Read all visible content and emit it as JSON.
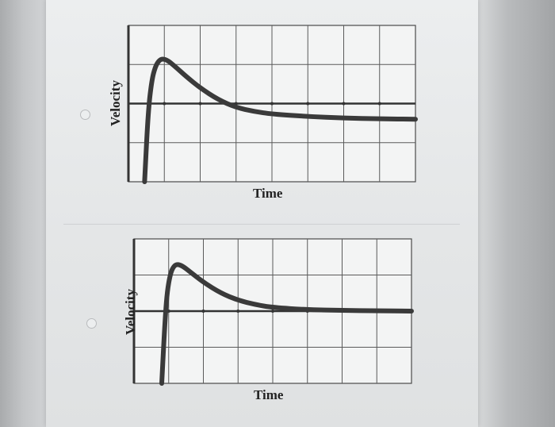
{
  "options": [
    {
      "id": "option-a",
      "selected": false,
      "chart_data": {
        "type": "line",
        "xlabel": "Time",
        "ylabel": "Velocity",
        "grid": true,
        "xlim": [
          0,
          8
        ],
        "ylim": [
          -2,
          2
        ],
        "series": [
          {
            "color": "#3a3a3a",
            "x": [
              0.45,
              0.55,
              0.65,
              0.75,
              0.85,
              0.95,
              1.1,
              1.3,
              1.6,
              2.0,
              2.5,
              3.0,
              3.5,
              4.0,
              5.0,
              6.0,
              7.0,
              8.0
            ],
            "y": [
              -2.0,
              -0.2,
              0.6,
              0.95,
              1.1,
              1.15,
              1.1,
              0.95,
              0.7,
              0.4,
              0.1,
              -0.1,
              -0.2,
              -0.27,
              -0.33,
              -0.37,
              -0.39,
              -0.4
            ]
          }
        ]
      }
    },
    {
      "id": "option-b",
      "selected": false,
      "chart_data": {
        "type": "line",
        "xlabel": "Time",
        "ylabel": "Velocity",
        "grid": true,
        "xlim": [
          0,
          8
        ],
        "ylim": [
          -2,
          2
        ],
        "series": [
          {
            "color": "#3a3a3a",
            "x": [
              0.8,
              0.88,
              0.95,
              1.05,
              1.15,
              1.25,
              1.4,
              1.6,
              2.0,
              2.5,
              3.0,
              3.5,
              4.0,
              5.0,
              6.0,
              7.0,
              8.0
            ],
            "y": [
              -2.0,
              -0.5,
              0.5,
              1.05,
              1.25,
              1.3,
              1.25,
              1.1,
              0.8,
              0.5,
              0.3,
              0.18,
              0.1,
              0.04,
              0.02,
              0.01,
              0.0
            ]
          }
        ]
      }
    }
  ]
}
